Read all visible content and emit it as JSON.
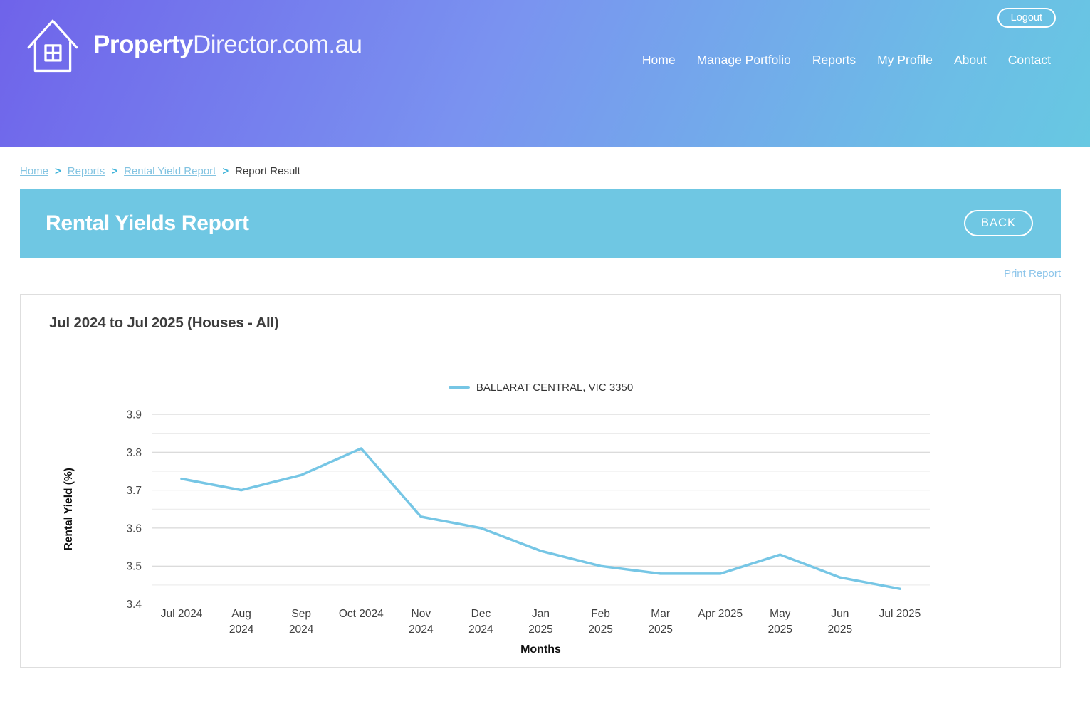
{
  "header": {
    "logo_bold": "Property",
    "logo_light": "Director.com.au",
    "nav": [
      {
        "label": "Home"
      },
      {
        "label": "Manage Portfolio"
      },
      {
        "label": "Reports"
      },
      {
        "label": "My Profile"
      },
      {
        "label": "About"
      },
      {
        "label": "Contact"
      }
    ],
    "logout_label": "Logout"
  },
  "breadcrumb": {
    "separator": ">",
    "items": [
      {
        "label": "Home",
        "is_link": true
      },
      {
        "label": "Reports",
        "is_link": true
      },
      {
        "label": "Rental Yield Report",
        "is_link": true
      },
      {
        "label": "Report Result",
        "is_link": false
      }
    ]
  },
  "banner": {
    "title": "Rental Yields Report",
    "back_label": "BACK"
  },
  "print_report_label": "Print Report",
  "chart_data": {
    "type": "line",
    "title": "Jul 2024 to Jul 2025 (Houses - All)",
    "xlabel": "Months",
    "ylabel": "Rental Yield (%)",
    "ylim": [
      3.4,
      3.9
    ],
    "ytick_step": 0.1,
    "grid_step": 0.05,
    "grid": "horizontal",
    "legend_position": "top-center",
    "categories": [
      "Jul 2024",
      "Aug 2024",
      "Sep 2024",
      "Oct 2024",
      "Nov 2024",
      "Dec 2024",
      "Jan 2025",
      "Feb 2025",
      "Mar 2025",
      "Apr 2025",
      "May 2025",
      "Jun 2025",
      "Jul 2025"
    ],
    "category_lines": [
      [
        "Jul 2024"
      ],
      [
        "Aug",
        "2024"
      ],
      [
        "Sep",
        "2024"
      ],
      [
        "Oct 2024"
      ],
      [
        "Nov",
        "2024"
      ],
      [
        "Dec",
        "2024"
      ],
      [
        "Jan",
        "2025"
      ],
      [
        "Feb",
        "2025"
      ],
      [
        "Mar",
        "2025"
      ],
      [
        "Apr 2025"
      ],
      [
        "May",
        "2025"
      ],
      [
        "Jun",
        "2025"
      ],
      [
        "Jul 2025"
      ]
    ],
    "series": [
      {
        "name": "BALLARAT CENTRAL, VIC 3350",
        "color": "#76c6e5",
        "values": [
          3.73,
          3.7,
          3.74,
          3.81,
          3.63,
          3.6,
          3.54,
          3.5,
          3.48,
          3.48,
          3.53,
          3.47,
          3.44
        ]
      }
    ]
  },
  "colors": {
    "header_gradient_start": "#6f63ea",
    "header_gradient_end": "#67c8e2",
    "banner_bg": "#6fc7e3",
    "line_color": "#76c6e5",
    "breadcrumb_link": "#82c3e1",
    "breadcrumb_separator": "#3fb3d9",
    "print_link": "#8cc5ea",
    "grid_major": "#cfcfcf",
    "grid_minor": "#e9e9e9"
  }
}
